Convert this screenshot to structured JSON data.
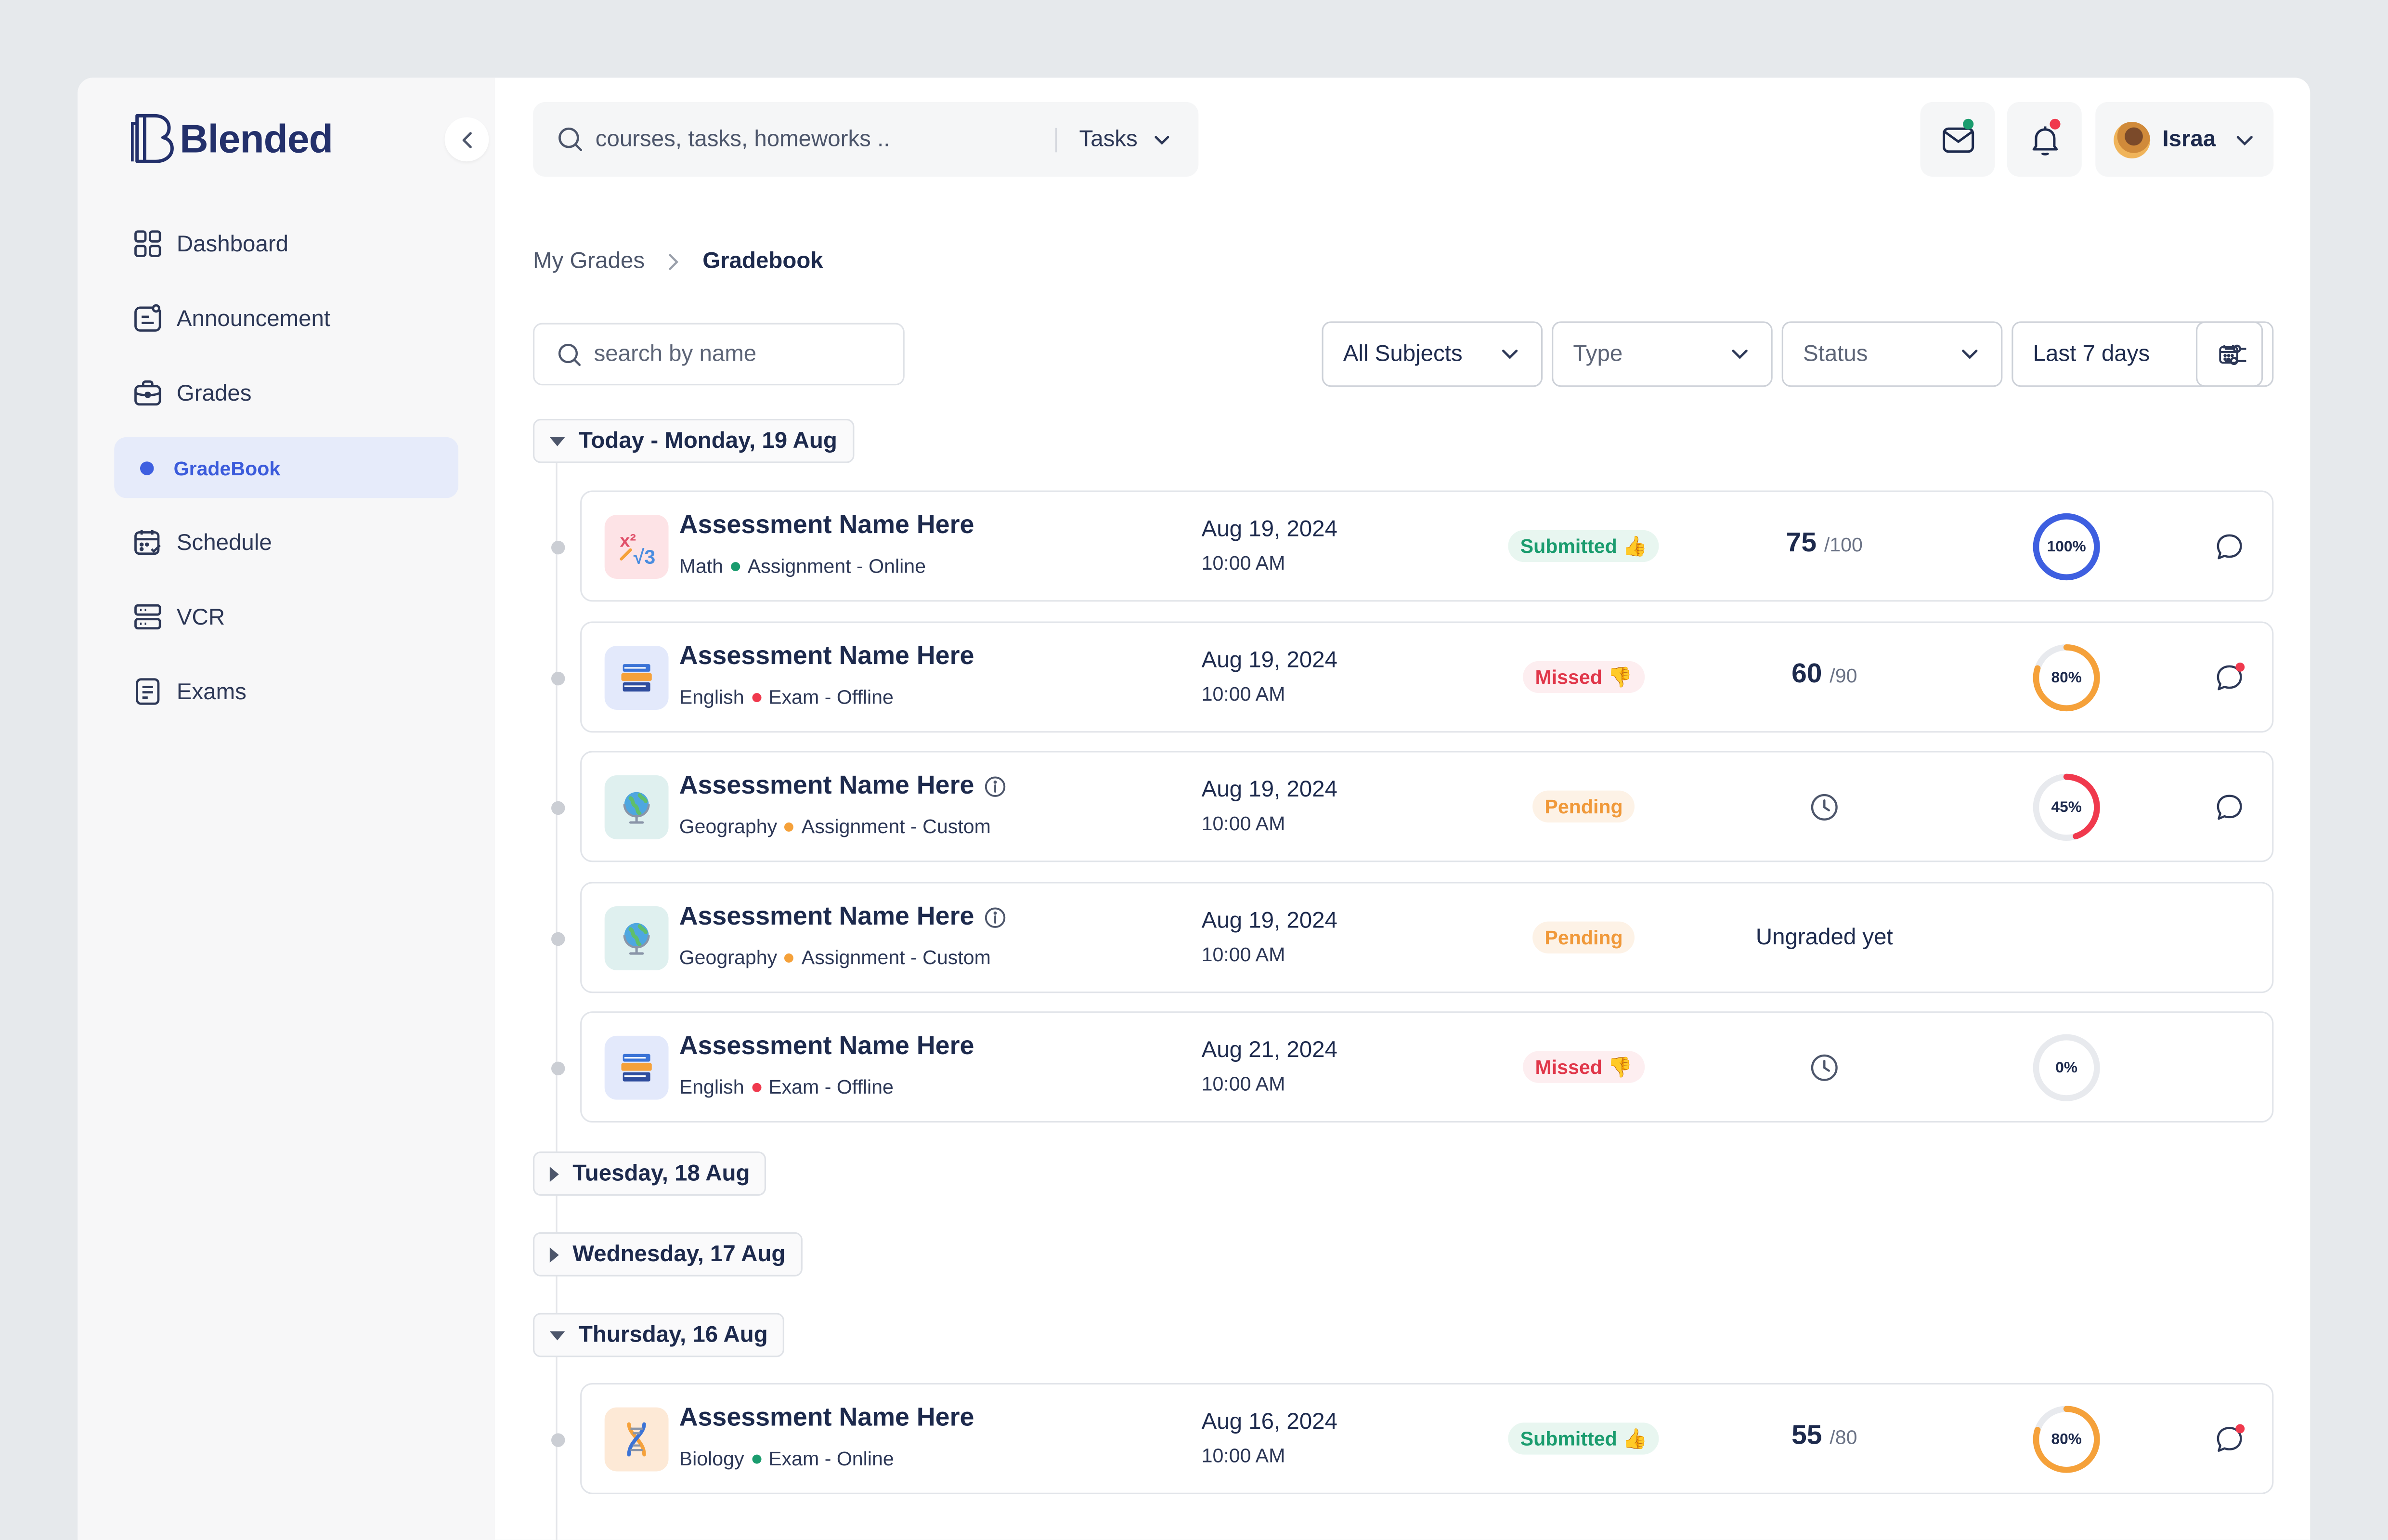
{
  "app": {
    "name": "Blended"
  },
  "sidebar": {
    "items": [
      {
        "label": "Dashboard",
        "icon": "dashboard-icon",
        "active": false
      },
      {
        "label": "Announcement",
        "icon": "announcement-icon",
        "active": false
      },
      {
        "label": "Grades",
        "icon": "briefcase-icon",
        "active": false
      },
      {
        "label": "GradeBook",
        "icon": "dot-icon",
        "active": true
      },
      {
        "label": "Schedule",
        "icon": "calendar-icon",
        "active": false
      },
      {
        "label": "VCR",
        "icon": "server-icon",
        "active": false
      },
      {
        "label": "Exams",
        "icon": "document-icon",
        "active": false
      }
    ]
  },
  "header": {
    "search_placeholder": "courses, tasks, homeworks ..",
    "search_scope": "Tasks",
    "user_name": "Israa",
    "mail_badge_color": "#1a9c6e",
    "bell_badge_color": "#f0394d"
  },
  "breadcrumb": {
    "parent": "My Grades",
    "current": "Gradebook"
  },
  "filters": {
    "name_search_placeholder": "search by name",
    "subjects": "All Subjects",
    "type": "Type",
    "status": "Status",
    "date_range": "Last 7 days"
  },
  "groups": [
    {
      "label": "Today - Monday, 19 Aug",
      "expanded": true
    },
    {
      "label": "Tuesday, 18 Aug",
      "expanded": false
    },
    {
      "label": "Wednesday, 17 Aug",
      "expanded": false
    },
    {
      "label": "Thursday, 16 Aug",
      "expanded": true
    }
  ],
  "rows": [
    {
      "title": "Assessment Name Here",
      "info_icon": false,
      "subject": "Math",
      "subject_icon": "math-icon",
      "dot_color": "#1a9c6e",
      "kind": "Assignment - Online",
      "date": "Aug 19, 2024",
      "time": "10:00 AM",
      "status": "Submitted",
      "status_type": "submitted",
      "status_emoji": "👍",
      "score": "75",
      "max": "/100",
      "progress": 100,
      "progress_label": "100%",
      "ring_color": "#3e5fe0",
      "comment_unread": false
    },
    {
      "title": "Assessment Name Here",
      "info_icon": false,
      "subject": "English",
      "subject_icon": "books-icon",
      "dot_color": "#f0394d",
      "kind": "Exam - Offline",
      "date": "Aug 19, 2024",
      "time": "10:00 AM",
      "status": "Missed",
      "status_type": "missed",
      "status_emoji": "👎",
      "score": "60",
      "max": "/90",
      "progress": 80,
      "progress_label": "80%",
      "ring_color": "#f5a13a",
      "comment_unread": true
    },
    {
      "title": "Assessment Name Here",
      "info_icon": true,
      "subject": "Geography",
      "subject_icon": "globe-icon",
      "dot_color": "#f5a13a",
      "kind": "Assignment - Custom",
      "date": "Aug 19, 2024",
      "time": "10:00 AM",
      "status": "Pending",
      "status_type": "pending",
      "status_emoji": "",
      "score": null,
      "max": null,
      "progress": 45,
      "progress_label": "45%",
      "ring_color": "#f0394d",
      "comment_unread": false
    },
    {
      "title": "Assessment Name Here",
      "info_icon": true,
      "subject": "Geography",
      "subject_icon": "globe-icon",
      "dot_color": "#f5a13a",
      "kind": "Assignment - Custom",
      "date": "Aug 19, 2024",
      "time": "10:00 AM",
      "status": "Pending",
      "status_type": "pending",
      "status_emoji": "",
      "score_text": "Ungraded yet",
      "progress": null,
      "comment": false
    },
    {
      "title": "Assessment Name Here",
      "info_icon": false,
      "subject": "English",
      "subject_icon": "books-icon",
      "dot_color": "#f0394d",
      "kind": "Exam - Offline",
      "date": "Aug 21, 2024",
      "time": "10:00 AM",
      "status": "Missed",
      "status_type": "missed",
      "status_emoji": "👎",
      "score": null,
      "max": null,
      "progress": 0,
      "progress_label": "0%",
      "ring_color": "#e4e6ea",
      "comment": false
    },
    {
      "title": "Assessment Name Here",
      "info_icon": false,
      "subject": "Biology",
      "subject_icon": "dna-icon",
      "dot_color": "#1a9c6e",
      "kind": "Exam - Online",
      "date": "Aug 16, 2024",
      "time": "10:00 AM",
      "status": "Submitted",
      "status_type": "submitted",
      "status_emoji": "👍",
      "score": "55",
      "max": "/80",
      "progress": 80,
      "progress_label": "80%",
      "ring_color": "#f5a13a",
      "comment_unread": true
    }
  ]
}
